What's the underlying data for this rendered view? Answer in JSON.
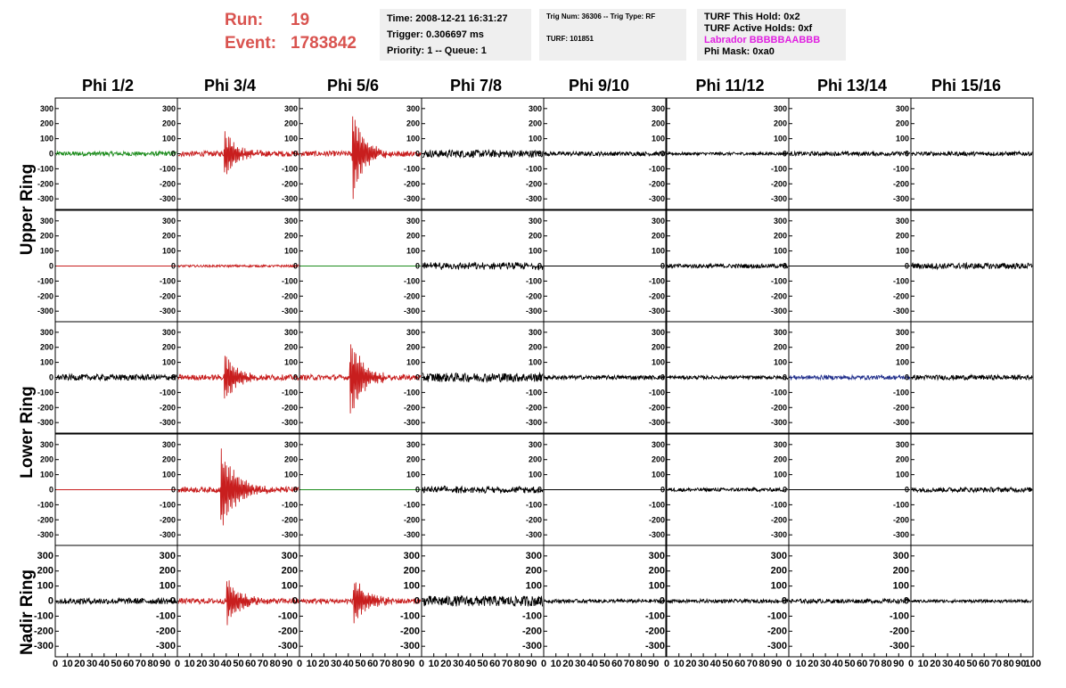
{
  "header": {
    "run_label": "Run:",
    "run_value": "19",
    "event_label": "Event:",
    "event_value": "1783842",
    "time": "Time: 2008-12-21 16:31:27",
    "trigger": "Trigger: 0.306697 ms",
    "priority": "Priority: 1 -- Queue: 1",
    "trig_num": "Trig Num: 36306 -- Trig Type: RF",
    "turf": "TURF: 101851",
    "turf_hold": "TURF This Hold: 0x2",
    "turf_active": "TURF Active Holds: 0xf",
    "labrador": "Labrador BBBBBAABBB",
    "phi_mask": "Phi Mask: 0xa0"
  },
  "columns": [
    "Phi 1/2",
    "Phi 3/4",
    "Phi 5/6",
    "Phi 7/8",
    "Phi 9/10",
    "Phi 11/12",
    "Phi 13/14",
    "Phi 15/16"
  ],
  "row_labels": [
    {
      "name": "upper-ring-label",
      "text": "Upper Ring"
    },
    {
      "name": "lower-ring-label",
      "text": "Lower Ring"
    },
    {
      "name": "nadir-ring-label",
      "text": "Nadir Ring"
    }
  ],
  "colors": {
    "run_text": "#d9534f",
    "red_trace": "#c81e1e",
    "green_trace": "#1c8c1c",
    "blue_trace": "#22308c",
    "black_trace": "#000000",
    "info_bg": "#efefef",
    "labrador_text": "#e020e0"
  },
  "chart_data": {
    "type": "line",
    "xlim": [
      0,
      100
    ],
    "ylim": [
      -370,
      370
    ],
    "y_ticks": [
      -300,
      -200,
      -100,
      0,
      100,
      200,
      300
    ],
    "x_ticks": [
      0,
      10,
      20,
      30,
      40,
      50,
      60,
      70,
      80,
      90,
      100
    ],
    "grid": false,
    "panels": [
      [
        {
          "color": "green",
          "kind": "noise",
          "amp": 15,
          "center": 0,
          "width": 0
        },
        {
          "color": "red",
          "kind": "pulse",
          "amp": 160,
          "center": 38,
          "width": 22
        },
        {
          "color": "red",
          "kind": "pulse",
          "amp": 320,
          "center": 43,
          "width": 20
        },
        {
          "color": "black",
          "kind": "noise",
          "amp": 25,
          "center": 0,
          "width": 0
        },
        {
          "color": "black",
          "kind": "noise",
          "amp": 14,
          "center": 0,
          "width": 0
        },
        {
          "color": "black",
          "kind": "noise",
          "amp": 10,
          "center": 0,
          "width": 0
        },
        {
          "color": "black",
          "kind": "noise",
          "amp": 14,
          "center": 0,
          "width": 0
        },
        {
          "color": "black",
          "kind": "noise",
          "amp": 14,
          "center": 0,
          "width": 0
        }
      ],
      [
        {
          "color": "red",
          "kind": "flat",
          "amp": 0,
          "center": 0,
          "width": 0
        },
        {
          "color": "red",
          "kind": "noise",
          "amp": 7,
          "center": 0,
          "width": 0
        },
        {
          "color": "green",
          "kind": "flat",
          "amp": 0,
          "center": 0,
          "width": 0
        },
        {
          "color": "black",
          "kind": "sparse",
          "amp": 25,
          "center": 0,
          "width": 0
        },
        {
          "color": "black",
          "kind": "flat",
          "amp": 0,
          "center": 0,
          "width": 0
        },
        {
          "color": "black",
          "kind": "noise",
          "amp": 14,
          "center": 0,
          "width": 0
        },
        {
          "color": "black",
          "kind": "flat",
          "amp": 0,
          "center": 0,
          "width": 0
        },
        {
          "color": "black",
          "kind": "noise",
          "amp": 20,
          "center": 0,
          "width": 0
        }
      ],
      [
        {
          "color": "black",
          "kind": "noise",
          "amp": 20,
          "center": 0,
          "width": 0
        },
        {
          "color": "red",
          "kind": "pulse",
          "amp": 170,
          "center": 38,
          "width": 22
        },
        {
          "color": "red",
          "kind": "pulse",
          "amp": 270,
          "center": 41,
          "width": 24
        },
        {
          "color": "black",
          "kind": "noise",
          "amp": 30,
          "center": 0,
          "width": 0
        },
        {
          "color": "black",
          "kind": "noise",
          "amp": 14,
          "center": 0,
          "width": 0
        },
        {
          "color": "black",
          "kind": "noise",
          "amp": 12,
          "center": 0,
          "width": 0
        },
        {
          "color": "blue",
          "kind": "noise",
          "amp": 14,
          "center": 0,
          "width": 0
        },
        {
          "color": "black",
          "kind": "noise",
          "amp": 16,
          "center": 0,
          "width": 0
        }
      ],
      [
        {
          "color": "red",
          "kind": "flat",
          "amp": 0,
          "center": 0,
          "width": 0
        },
        {
          "color": "red",
          "kind": "pulse",
          "amp": 280,
          "center": 35,
          "width": 28
        },
        {
          "color": "green",
          "kind": "flat",
          "amp": 0,
          "center": 0,
          "width": 0
        },
        {
          "color": "black",
          "kind": "sparse",
          "amp": 25,
          "center": 0,
          "width": 0
        },
        {
          "color": "black",
          "kind": "flat",
          "amp": 0,
          "center": 0,
          "width": 0
        },
        {
          "color": "black",
          "kind": "noise",
          "amp": 12,
          "center": 0,
          "width": 0
        },
        {
          "color": "black",
          "kind": "flat",
          "amp": 0,
          "center": 0,
          "width": 0
        },
        {
          "color": "black",
          "kind": "noise",
          "amp": 16,
          "center": 0,
          "width": 0
        }
      ],
      [
        {
          "color": "black",
          "kind": "noise",
          "amp": 20,
          "center": 0,
          "width": 0
        },
        {
          "color": "red",
          "kind": "pulse",
          "amp": 170,
          "center": 40,
          "width": 22
        },
        {
          "color": "red",
          "kind": "pulse",
          "amp": 160,
          "center": 44,
          "width": 24
        },
        {
          "color": "black",
          "kind": "noise",
          "amp": 35,
          "center": 0,
          "width": 0
        },
        {
          "color": "black",
          "kind": "noise",
          "amp": 12,
          "center": 0,
          "width": 0
        },
        {
          "color": "black",
          "kind": "noise",
          "amp": 12,
          "center": 0,
          "width": 0
        },
        {
          "color": "black",
          "kind": "noise",
          "amp": 14,
          "center": 0,
          "width": 0
        },
        {
          "color": "black",
          "kind": "noise",
          "amp": 10,
          "center": 0,
          "width": 0
        }
      ]
    ]
  }
}
